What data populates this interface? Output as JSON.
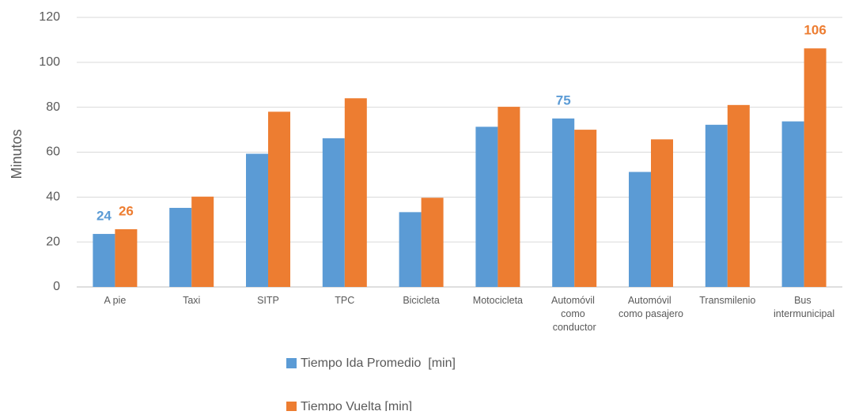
{
  "chart_data": {
    "type": "bar",
    "y_label": "Minutos",
    "categories": [
      "A pie",
      "Taxi",
      "SITP",
      "TPC",
      "Bicicleta",
      "Motocicleta",
      "Automóvil como conductor",
      "Automóvil como pasajero",
      "Transmilenio",
      "Bus intermunicipal"
    ],
    "series": [
      {
        "name": "Tiempo Ida Promedio  [min]",
        "color": "#5b9bd5",
        "values": [
          23.6,
          35.2,
          59.3,
          66.2,
          33.3,
          71.3,
          75,
          51.2,
          72.2,
          73.7
        ],
        "value_labels": [
          "24",
          null,
          null,
          null,
          null,
          null,
          "75",
          null,
          null,
          null
        ]
      },
      {
        "name": "Tiempo Vuelta [min]",
        "color": "#ed7d31",
        "values": [
          25.7,
          40.2,
          78,
          84,
          39.7,
          80.2,
          70,
          65.7,
          81,
          106.2
        ],
        "value_labels": [
          "26",
          null,
          null,
          null,
          null,
          null,
          null,
          null,
          null,
          "106"
        ]
      }
    ],
    "ylim": [
      0,
      120
    ],
    "yticks": [
      0,
      20,
      40,
      60,
      80,
      100,
      120
    ],
    "grid": true,
    "legend": "bottom"
  }
}
